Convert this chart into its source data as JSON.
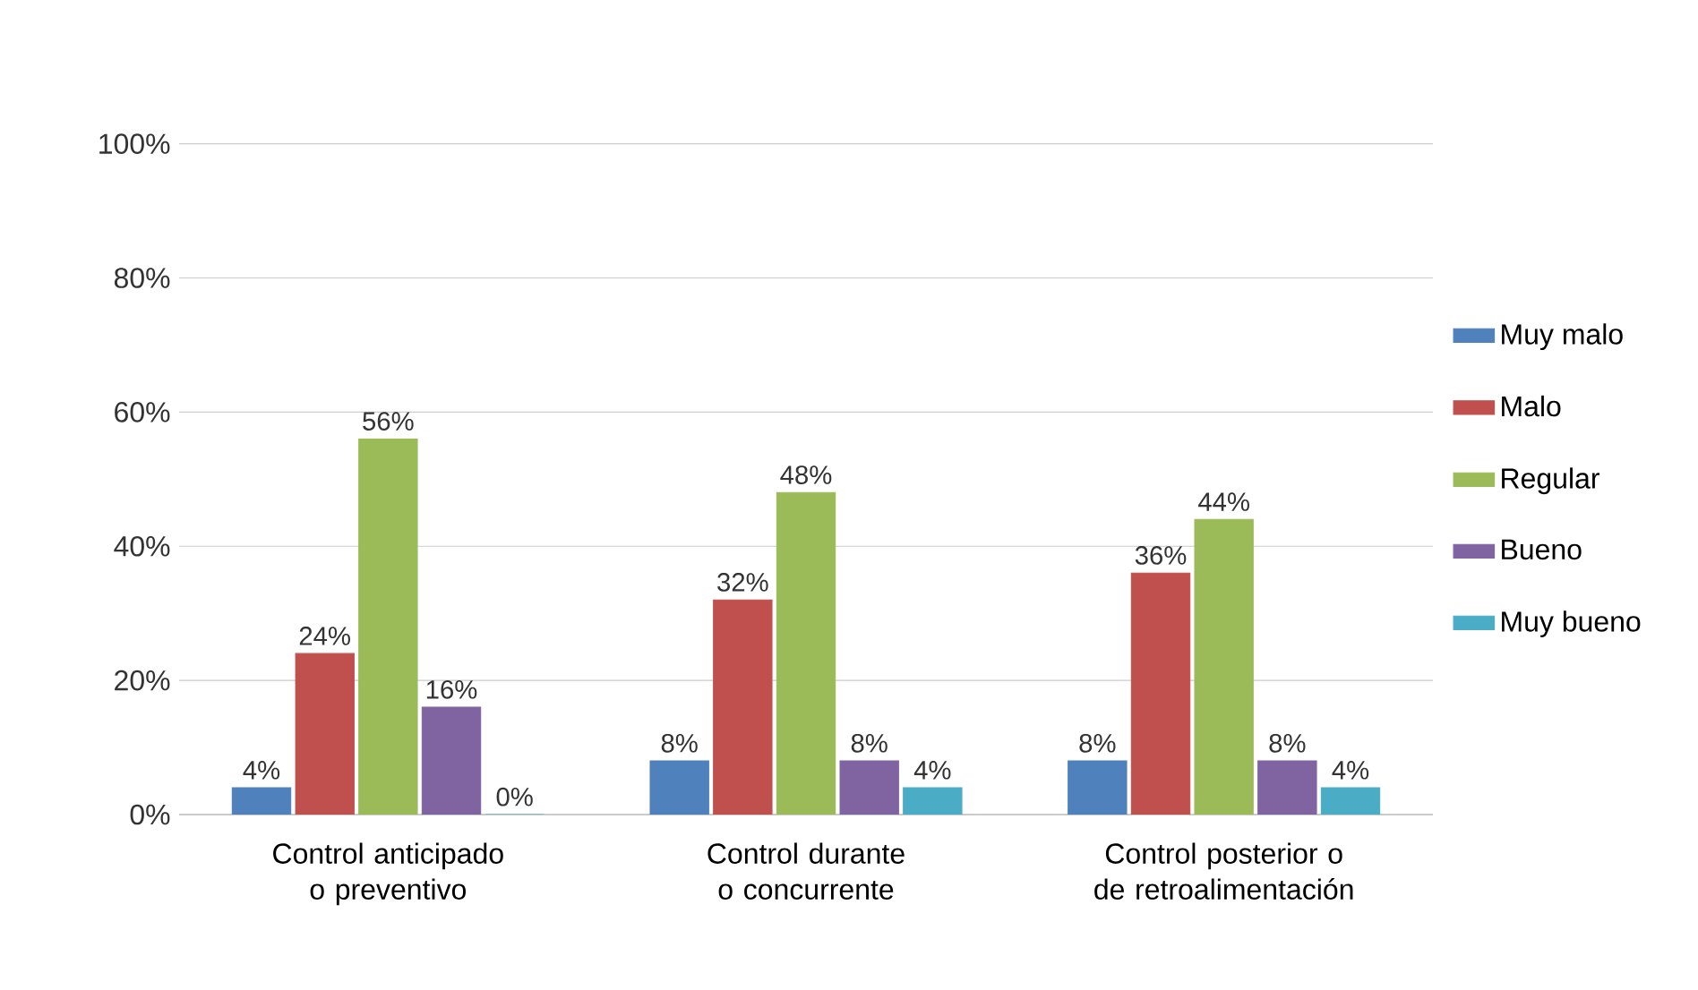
{
  "chart_data": {
    "type": "bar",
    "categories": [
      "Control anticipado o preventivo",
      "Control durante o concurrente",
      "Control posterior o de retroalimentación"
    ],
    "series": [
      {
        "name": "Muy malo",
        "color": "#4f81bd",
        "values": [
          4,
          8,
          8
        ],
        "value_labels": [
          "4%",
          "8%",
          "8%"
        ]
      },
      {
        "name": "Malo",
        "color": "#c0504d",
        "values": [
          24,
          32,
          36
        ],
        "value_labels": [
          "24%",
          "32%",
          "36%"
        ]
      },
      {
        "name": "Regular",
        "color": "#9bbb59",
        "values": [
          56,
          48,
          44
        ],
        "value_labels": [
          "56%",
          "48%",
          "44%"
        ]
      },
      {
        "name": "Bueno",
        "color": "#8064a2",
        "values": [
          16,
          8,
          8
        ],
        "value_labels": [
          "16%",
          "8%",
          "8%"
        ]
      },
      {
        "name": "Muy bueno",
        "color": "#4bacc6",
        "values": [
          0,
          4,
          4
        ],
        "value_labels": [
          "0%",
          "4%",
          "4%"
        ]
      }
    ],
    "ylim": [
      0,
      100
    ],
    "yticks": [
      {
        "value": 0,
        "label": "0%"
      },
      {
        "value": 20,
        "label": "20%"
      },
      {
        "value": 40,
        "label": "40%"
      },
      {
        "value": 60,
        "label": "60%"
      },
      {
        "value": 80,
        "label": "80%"
      },
      {
        "value": 100,
        "label": "100%"
      }
    ],
    "grid": "y",
    "legend": "right"
  }
}
